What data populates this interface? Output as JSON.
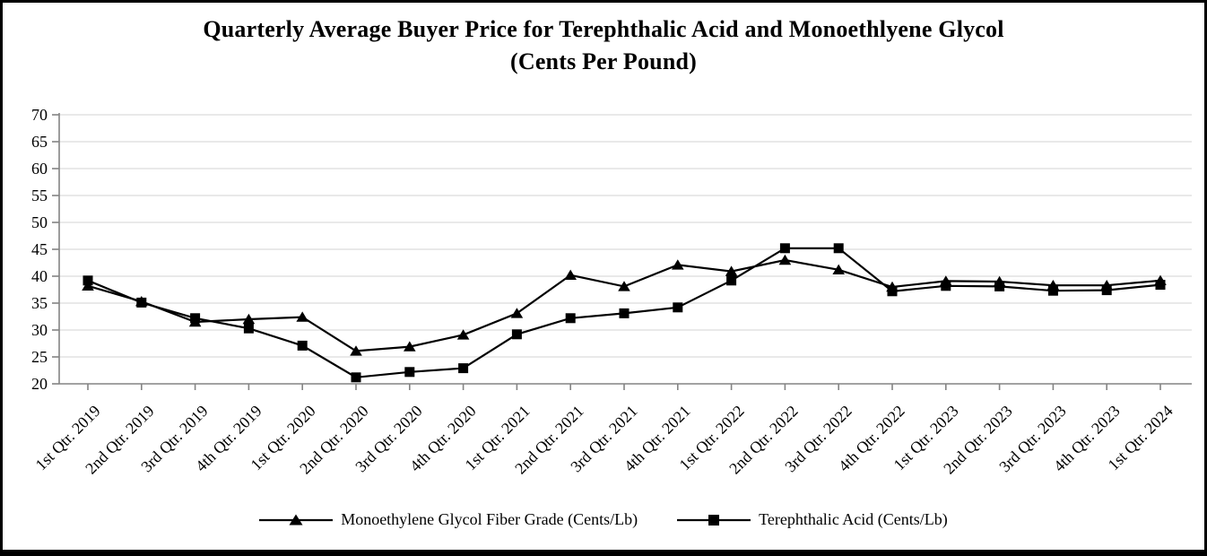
{
  "title": {
    "line1": "Quarterly Average Buyer Price for Terephthalic Acid and Monoethlyene Glycol",
    "line2": "(Cents Per Pound)"
  },
  "chart_data": {
    "type": "line",
    "title": "Quarterly Average Buyer Price for Terephthalic Acid and Monoethlyene Glycol (Cents Per Pound)",
    "categories": [
      "1st Qtr. 2019",
      "2nd Qtr. 2019",
      "3rd Qtr. 2019",
      "4th Qtr. 2019",
      "1st Qtr. 2020",
      "2nd Qtr. 2020",
      "3rd Qtr. 2020",
      "4th Qtr. 2020",
      "1st Qtr. 2021",
      "2nd Qtr. 2021",
      "3rd Qtr. 2021",
      "4th Qtr. 2021",
      "1st Qtr. 2022",
      "2nd Qtr. 2022",
      "3rd Qtr. 2022",
      "4th Qtr. 2022",
      "1st Qtr. 2023",
      "2nd Qtr. 2023",
      "3rd Qtr. 2023",
      "4th Qtr. 2023",
      "1st Qtr. 2024"
    ],
    "series": [
      {
        "name": "Monoethylene Glycol Fiber Grade (Cents/Lb)",
        "marker": "triangle",
        "values": [
          38.2,
          35.3,
          31.5,
          32.0,
          32.4,
          26.1,
          26.9,
          29.1,
          33.1,
          40.2,
          38.1,
          42.1,
          40.9,
          43.0,
          41.2,
          38.0,
          39.1,
          39.0,
          38.3,
          38.3,
          39.2
        ]
      },
      {
        "name": "Terephthalic Acid (Cents/Lb)",
        "marker": "square",
        "values": [
          39.2,
          35.1,
          32.2,
          30.3,
          27.1,
          21.2,
          22.2,
          22.9,
          29.2,
          32.2,
          33.1,
          34.2,
          39.2,
          45.2,
          45.2,
          37.2,
          38.2,
          38.1,
          37.3,
          37.4,
          38.4
        ]
      }
    ],
    "xlabel": "",
    "ylabel": "",
    "ylim": [
      20,
      70
    ],
    "ytick_step": 5,
    "grid": true,
    "legend_position": "bottom",
    "series_color": "#000000",
    "gridline_color": "#dcdcdc",
    "axis_color": "#848484"
  }
}
